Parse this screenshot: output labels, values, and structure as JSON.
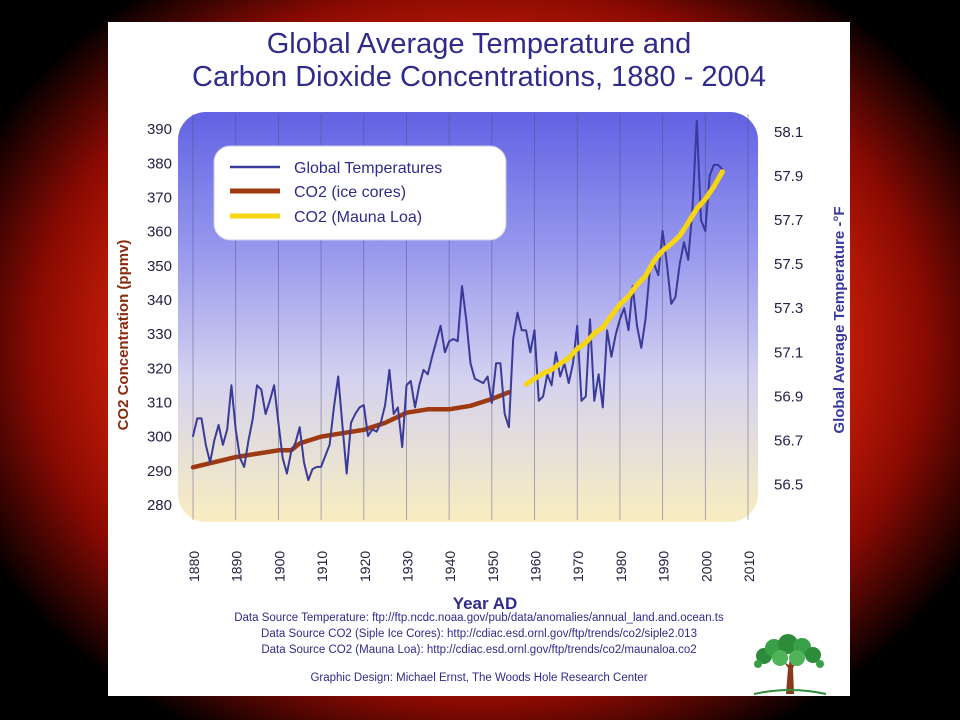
{
  "chart_data": {
    "type": "line",
    "title_lines": [
      "Global Average Temperature and",
      "Carbon Dioxide Concentrations, 1880 - 2004"
    ],
    "xlabel": "Year AD",
    "ylabel_left": "CO2 Concentration (ppmv)",
    "ylabel_right": "Global Average Temperature -°F",
    "xlim": [
      1880,
      2010
    ],
    "ylim_left": [
      275,
      395
    ],
    "ylim_right": [
      56.33,
      58.19
    ],
    "x_ticks": [
      "1880",
      "1890",
      "1900",
      "1910",
      "1920",
      "1930",
      "1940",
      "1950",
      "1960",
      "1970",
      "1980",
      "1990",
      "2000",
      "2010"
    ],
    "y_ticks_left": [
      "390",
      "380",
      "370",
      "360",
      "350",
      "340",
      "330",
      "320",
      "310",
      "300",
      "290",
      "280"
    ],
    "y_ticks_right": [
      "58.1",
      "57.9",
      "57.7",
      "57.5",
      "57.3",
      "57.1",
      "56.9",
      "56.7",
      "56.5"
    ],
    "legend_position": "top-left",
    "grid": "vertical",
    "series": [
      {
        "name": "Global Temperatures",
        "axis": "right",
        "color": "#3a3a9a",
        "x": [
          1880,
          1881,
          1882,
          1883,
          1884,
          1885,
          1886,
          1887,
          1888,
          1889,
          1890,
          1891,
          1892,
          1893,
          1894,
          1895,
          1896,
          1897,
          1898,
          1899,
          1900,
          1901,
          1902,
          1903,
          1904,
          1905,
          1906,
          1907,
          1908,
          1909,
          1910,
          1911,
          1912,
          1913,
          1914,
          1915,
          1916,
          1917,
          1918,
          1919,
          1920,
          1921,
          1922,
          1923,
          1924,
          1925,
          1926,
          1927,
          1928,
          1929,
          1930,
          1931,
          1932,
          1933,
          1934,
          1935,
          1936,
          1937,
          1938,
          1939,
          1940,
          1941,
          1942,
          1943,
          1944,
          1945,
          1946,
          1947,
          1948,
          1949,
          1950,
          1951,
          1952,
          1953,
          1954,
          1955,
          1956,
          1957,
          1958,
          1959,
          1960,
          1961,
          1962,
          1963,
          1964,
          1965,
          1966,
          1967,
          1968,
          1969,
          1970,
          1971,
          1972,
          1973,
          1974,
          1975,
          1976,
          1977,
          1978,
          1979,
          1980,
          1981,
          1982,
          1983,
          1984,
          1985,
          1986,
          1987,
          1988,
          1989,
          1990,
          1991,
          1992,
          1993,
          1994,
          1995,
          1996,
          1997,
          1998,
          1999,
          2000,
          2001,
          2002,
          2003,
          2004
        ],
        "values": [
          56.72,
          56.8,
          56.8,
          56.68,
          56.6,
          56.7,
          56.77,
          56.68,
          56.75,
          56.95,
          56.75,
          56.62,
          56.58,
          56.7,
          56.8,
          56.95,
          56.93,
          56.82,
          56.88,
          56.95,
          56.78,
          56.62,
          56.55,
          56.65,
          56.69,
          56.76,
          56.6,
          56.52,
          56.57,
          56.58,
          56.58,
          56.63,
          56.68,
          56.85,
          56.99,
          56.77,
          56.55,
          56.78,
          56.82,
          56.85,
          56.86,
          56.72,
          56.75,
          56.74,
          56.78,
          56.86,
          57.02,
          56.82,
          56.85,
          56.67,
          56.95,
          56.97,
          56.85,
          56.95,
          57.02,
          57.0,
          57.08,
          57.15,
          57.22,
          57.1,
          57.15,
          57.16,
          57.15,
          57.4,
          57.25,
          57.05,
          56.98,
          56.97,
          56.96,
          56.99,
          56.87,
          57.05,
          57.05,
          56.82,
          56.76,
          57.16,
          57.28,
          57.2,
          57.2,
          57.1,
          57.2,
          56.88,
          56.9,
          57.0,
          56.95,
          57.1,
          56.99,
          57.05,
          56.96,
          57.05,
          57.22,
          56.88,
          56.9,
          57.25,
          56.88,
          57.0,
          56.85,
          57.2,
          57.08,
          57.18,
          57.25,
          57.3,
          57.2,
          57.4,
          57.22,
          57.12,
          57.25,
          57.47,
          57.5,
          57.45,
          57.65,
          57.5,
          57.32,
          57.35,
          57.5,
          57.6,
          57.52,
          57.75,
          58.15,
          57.7,
          57.65,
          57.9,
          57.95,
          57.95,
          57.93
        ]
      },
      {
        "name": "CO2 (ice cores)",
        "axis": "left",
        "color": "#9e3a12",
        "x": [
          1880,
          1890,
          1900,
          1903,
          1905,
          1910,
          1915,
          1920,
          1925,
          1930,
          1935,
          1940,
          1945,
          1950,
          1954
        ],
        "values": [
          291,
          294,
          296,
          296,
          298,
          300,
          301,
          302,
          304,
          307,
          308,
          308,
          309,
          311,
          313
        ]
      },
      {
        "name": "CO2 (Mauna Loa)",
        "axis": "left",
        "color": "#f6d512",
        "x": [
          1958,
          1960,
          1962,
          1964,
          1966,
          1968,
          1970,
          1972,
          1974,
          1976,
          1978,
          1980,
          1982,
          1984,
          1986,
          1988,
          1990,
          1992,
          1994,
          1996,
          1998,
          2000,
          2002,
          2004
        ],
        "values": [
          315.3,
          316.9,
          318.5,
          319.6,
          321.4,
          323.0,
          325.7,
          327.5,
          330.2,
          332.0,
          335.4,
          338.7,
          341.1,
          344.4,
          347.0,
          351.5,
          354.4,
          356.4,
          358.8,
          362.6,
          366.7,
          369.5,
          373.1,
          377.5
        ]
      }
    ]
  },
  "sources": [
    "Data Source Temperature: ftp://ftp.ncdc.noaa.gov/pub/data/anomalies/annual_land.and.ocean.ts",
    "Data Source CO2 (Siple Ice Cores): http://cdiac.esd.ornl.gov/ftp/trends/co2/siple2.013",
    "Data Source CO2 (Mauna Loa): http://cdiac.esd.ornl.gov/ftp/trends/co2/maunaloa.co2"
  ],
  "credit": "Graphic Design: Michael Ernst, The Woods Hole Research Center",
  "colors": {
    "title": "#2f2b8a",
    "left_axis_label": "#8a2c10",
    "right_axis_label": "#3a3a9a",
    "plot_top": "#6a6ae6",
    "plot_bottom": "#f7ecc0"
  }
}
